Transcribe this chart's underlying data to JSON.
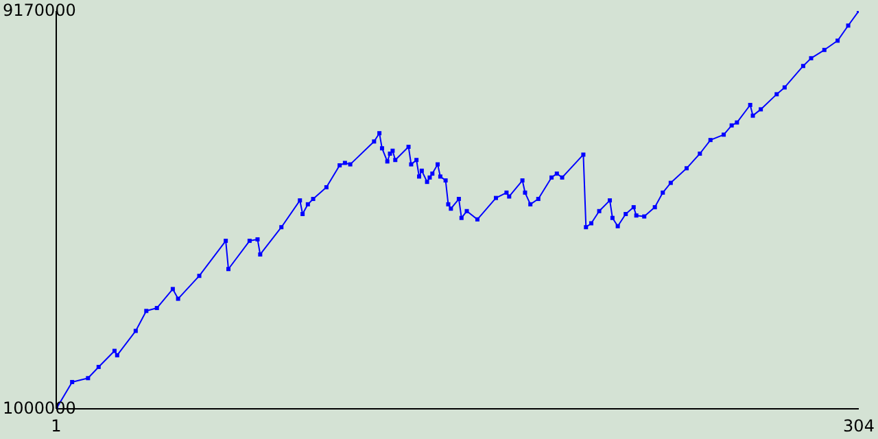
{
  "chart_data": {
    "type": "line",
    "marker": "square",
    "color": "#0000ff",
    "xlim": [
      1,
      304
    ],
    "xticks": [
      1,
      304
    ],
    "ylim": [
      1000000,
      9170000
    ],
    "yticks": [
      1000000,
      9170000
    ],
    "x": [
      1,
      7,
      13,
      17,
      23,
      24,
      31,
      35,
      39,
      45,
      47,
      55,
      65,
      66,
      74,
      77,
      78,
      86,
      93,
      94,
      96,
      98,
      103,
      108,
      110,
      112,
      121,
      123,
      124,
      126,
      127,
      128,
      129,
      134,
      135,
      137,
      138,
      139,
      141,
      142,
      143,
      145,
      146,
      148,
      149,
      150,
      153,
      154,
      156,
      160,
      167,
      171,
      172,
      177,
      178,
      180,
      183,
      188,
      190,
      192,
      200,
      201,
      203,
      206,
      210,
      211,
      213,
      216,
      219,
      220,
      223,
      227,
      230,
      233,
      239,
      244,
      248,
      253,
      256,
      258,
      263,
      264,
      267,
      273,
      276,
      283,
      286,
      291,
      296,
      300,
      304
    ],
    "values": [
      1000000,
      1550000,
      1630000,
      1860000,
      2190000,
      2100000,
      2600000,
      3010000,
      3070000,
      3460000,
      3260000,
      3730000,
      4450000,
      3870000,
      4450000,
      4480000,
      4170000,
      4730000,
      5280000,
      5000000,
      5200000,
      5310000,
      5550000,
      6000000,
      6050000,
      6020000,
      6490000,
      6660000,
      6350000,
      6080000,
      6240000,
      6300000,
      6110000,
      6380000,
      6020000,
      6110000,
      5770000,
      5890000,
      5660000,
      5750000,
      5830000,
      6020000,
      5770000,
      5690000,
      5200000,
      5110000,
      5310000,
      4920000,
      5060000,
      4890000,
      5330000,
      5440000,
      5360000,
      5690000,
      5440000,
      5200000,
      5310000,
      5750000,
      5830000,
      5750000,
      6220000,
      4730000,
      4810000,
      5060000,
      5280000,
      4920000,
      4750000,
      5000000,
      5140000,
      4970000,
      4950000,
      5140000,
      5440000,
      5640000,
      5940000,
      6240000,
      6520000,
      6630000,
      6820000,
      6880000,
      7240000,
      7020000,
      7150000,
      7460000,
      7600000,
      8040000,
      8200000,
      8370000,
      8560000,
      8870000,
      9170000
    ]
  }
}
